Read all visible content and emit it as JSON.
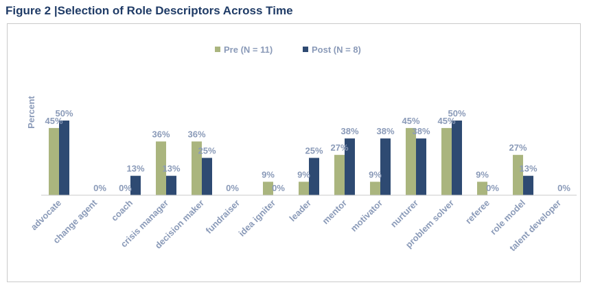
{
  "figure_title": "Figure 2 |Selection of Role Descriptors Across Time",
  "chart_data": {
    "type": "bar",
    "title": "",
    "ylabel": "Percent",
    "xlabel": "",
    "ylim": [
      0,
      60
    ],
    "grid": false,
    "legend_position": "top-center",
    "categories": [
      "advocate",
      "change agent",
      "coach",
      "crisis manager",
      "decision maker",
      "fundraiser",
      "idea igniter",
      "leader",
      "mentor",
      "motivator",
      "nurturer",
      "problem solver",
      "referee",
      "role model",
      "talent developer"
    ],
    "series": [
      {
        "name": "Pre (N = 11)",
        "color": "#aab57e",
        "values": [
          45,
          null,
          0,
          36,
          36,
          0,
          9,
          9,
          27,
          9,
          45,
          45,
          9,
          27,
          null
        ],
        "labels": [
          "45%",
          "",
          "0%",
          "36%",
          "36%",
          "0%",
          "9%",
          "9%",
          "27%",
          "9%",
          "45%",
          "45%",
          "9%",
          "27%",
          ""
        ]
      },
      {
        "name": "Post (N = 8)",
        "color": "#2e4a72",
        "values": [
          50,
          0,
          13,
          13,
          25,
          null,
          0,
          25,
          38,
          38,
          38,
          50,
          0,
          13,
          0
        ],
        "labels": [
          "50%",
          "0%",
          "13%",
          "13%",
          "25%",
          "",
          "0%",
          "25%",
          "38%",
          "38%",
          "38%",
          "50%",
          "0%",
          "13%",
          "0%"
        ]
      }
    ]
  }
}
